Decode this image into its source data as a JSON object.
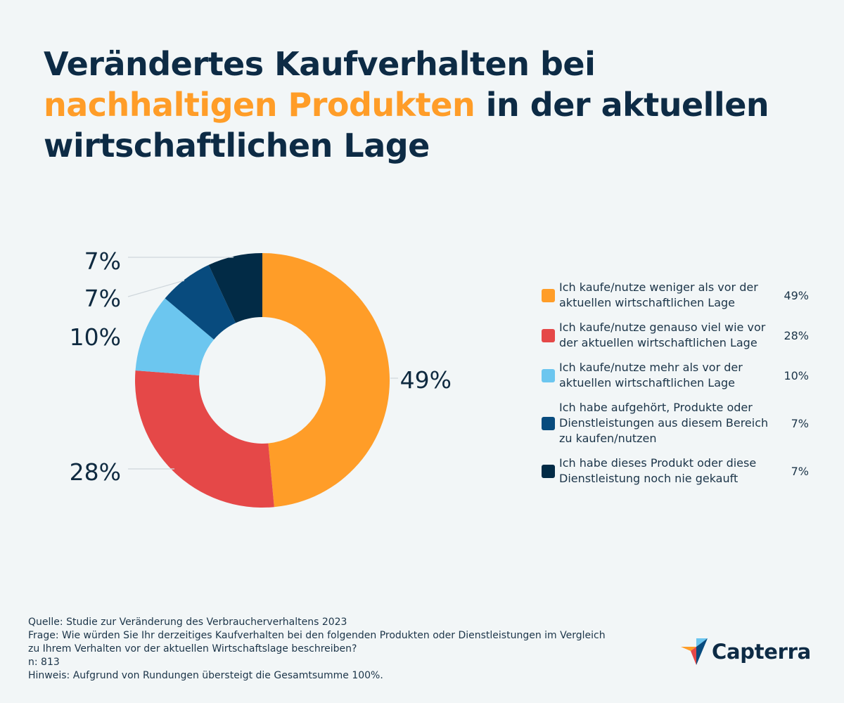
{
  "title": {
    "line1": "Verändertes Kaufverhalten bei",
    "highlight": "nachhaltigen Produkten",
    "line2_rest": " in der aktuellen",
    "line3": "wirtschaftlichen Lage"
  },
  "chart_data": {
    "type": "pie",
    "variant": "donut",
    "series": [
      {
        "name": "Ich kaufe/nutze weniger als vor der aktuellen wirtschaftlichen Lage",
        "value": 49,
        "label": "49%",
        "color": "#ff9d28"
      },
      {
        "name": "Ich kaufe/nutze genauso viel wie vor der aktuellen wirtschaftlichen Lage",
        "value": 28,
        "label": "28%",
        "color": "#e54848"
      },
      {
        "name": "Ich kaufe/nutze mehr als vor der aktuellen wirtschaftlichen Lage",
        "value": 10,
        "label": "10%",
        "color": "#6cc6ef"
      },
      {
        "name": "Ich habe aufgehört, Produkte oder Dienstleistungen aus diesem Bereich zu kaufen/nutzen",
        "value": 7,
        "label": "7%",
        "color": "#084b7e"
      },
      {
        "name": "Ich habe dieses Produkt oder diese Dienstleistung noch nie gekauft",
        "value": 7,
        "label": "7%",
        "color": "#022b46"
      }
    ],
    "legend_position": "right"
  },
  "footer": {
    "source": "Quelle: Studie zur Veränderung des Verbraucherverhaltens 2023",
    "question_line1": "Frage: Wie würden Sie Ihr derzeitiges Kaufverhalten bei den folgenden Produkten oder Dienstleistungen im Vergleich",
    "question_line2": "zu Ihrem Verhalten vor der aktuellen Wirtschaftslage beschreiben?",
    "n": "n: 813",
    "note": "Hinweis: Aufgrund von Rundungen übersteigt die Gesamtsumme 100%."
  },
  "logo": {
    "name": "Capterra",
    "icon": "capterra-logo-icon"
  }
}
